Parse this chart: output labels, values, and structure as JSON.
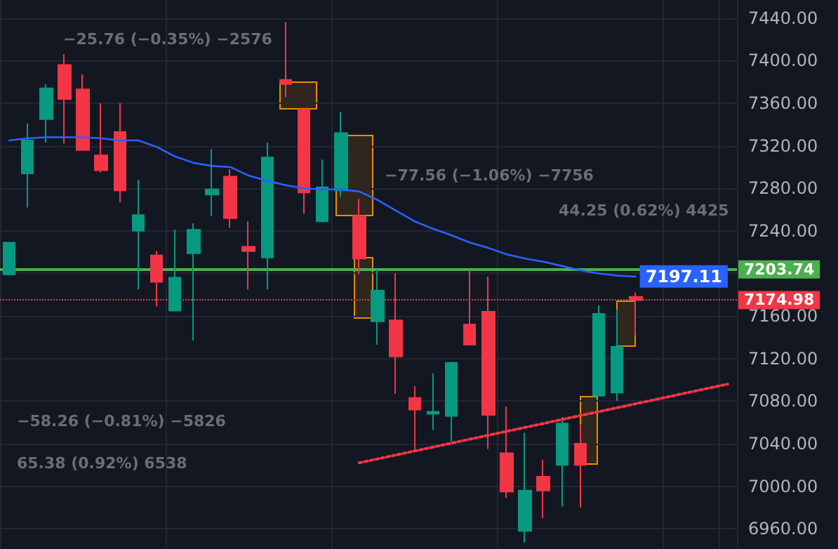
{
  "chart_data": {
    "type": "candlestick",
    "categories": [
      null,
      null,
      null,
      null,
      null,
      null,
      null,
      null,
      null,
      null,
      null,
      null,
      null,
      null,
      null,
      null,
      null,
      null,
      null,
      null,
      null,
      null,
      null,
      null,
      null,
      null,
      null,
      null,
      null,
      null,
      null,
      null,
      null,
      null,
      null,
      null,
      null,
      null,
      null,
      null
    ],
    "series": [
      {
        "type": "candlestick",
        "ohlc": [
          [
            7199,
            7229,
            7199,
            7229
          ],
          [
            7294,
            7341,
            7262,
            7325
          ],
          [
            7345,
            7378,
            7323,
            7374
          ],
          [
            7396,
            7406,
            7322,
            7364
          ],
          [
            7373,
            7387,
            7316,
            7316
          ],
          [
            7311,
            7360,
            7295,
            7297
          ],
          [
            7333,
            7360,
            7267,
            7278
          ],
          [
            7240,
            7288,
            7185,
            7255
          ],
          [
            7217,
            7221,
            7169,
            7192
          ],
          [
            7165,
            7241,
            7165,
            7196
          ],
          [
            7219,
            7247,
            7137,
            7241
          ],
          [
            7274,
            7317,
            7254,
            7279
          ],
          [
            7291,
            7298,
            7243,
            7252
          ],
          [
            7225,
            7249,
            7185,
            7221
          ],
          [
            7215,
            7323,
            7185,
            7309
          ],
          [
            7382,
            7436,
            7366,
            7378
          ],
          [
            7354,
            7354,
            7256,
            7276
          ],
          [
            7249,
            7307,
            7248,
            7281
          ],
          [
            7278,
            7352,
            7272,
            7332
          ],
          [
            7254,
            7270,
            7199,
            7214
          ],
          [
            7155,
            7204,
            7133,
            7184
          ],
          [
            7156,
            7200,
            7087,
            7122
          ],
          [
            7083,
            7094,
            7033,
            7072
          ],
          [
            7068,
            7106,
            7053,
            7070
          ],
          [
            7066,
            7117,
            7042,
            7116
          ],
          [
            7152,
            7204,
            7133,
            7133
          ],
          [
            7164,
            7197,
            7035,
            7067
          ],
          [
            7031,
            7075,
            6989,
            6995
          ],
          [
            6958,
            7050,
            6947,
            6996
          ],
          [
            7009,
            7025,
            6970,
            6996
          ],
          [
            7020,
            7065,
            6981,
            7059
          ],
          [
            7040,
            7058,
            6980,
            7020
          ],
          [
            7085,
            7170,
            7085,
            7162
          ],
          [
            7088,
            7166,
            7080,
            7131
          ],
          [
            7178,
            7182,
            7142,
            7174.98
          ],
          null,
          null,
          null,
          null,
          null
        ],
        "colors": [
          "#089981",
          "#089981",
          "#089981",
          "#f23645",
          "#f23645",
          "#f23645",
          "#f23645",
          "#089981",
          "#f23645",
          "#089981",
          "#089981",
          "#089981",
          "#f23645",
          "#f23645",
          "#089981",
          "#f23645",
          "#f23645",
          "#089981",
          "#089981",
          "#f23645",
          "#089981",
          "#f23645",
          "#f23645",
          "#089981",
          "#089981",
          "#f23645",
          "#f23645",
          "#f23645",
          "#089981",
          "#f23645",
          "#089981",
          "#f23645",
          "#089981",
          "#089981",
          "#f23645",
          null,
          null,
          null,
          null,
          null
        ]
      },
      {
        "type": "line",
        "color": "#2962ff",
        "values": [
          7325,
          7327,
          7328,
          7328,
          7328,
          7327,
          7325,
          7325,
          7319,
          7310,
          7304,
          7301,
          7300,
          7292,
          7287,
          7283,
          7280,
          7279,
          7279,
          7277,
          7269,
          7259,
          7249,
          7242,
          7236,
          7229,
          7224,
          7218,
          7214,
          7211,
          7207,
          7203,
          7200,
          7198,
          7197.11,
          null,
          null,
          null,
          null,
          null
        ],
        "value_labels": [
          null,
          null,
          null,
          null,
          null,
          null,
          null,
          null,
          null,
          null,
          null,
          null,
          null,
          null,
          null,
          null,
          null,
          null,
          null,
          null,
          null,
          null,
          null,
          null,
          null,
          null,
          null,
          null,
          null,
          null,
          null,
          null,
          null,
          null,
          "7197.11",
          null,
          null,
          null,
          null,
          null
        ]
      },
      {
        "type": "line",
        "color": "#f23645",
        "line_style": "dotted",
        "values": [
          null,
          null,
          null,
          null,
          null,
          null,
          null,
          null,
          null,
          null,
          null,
          null,
          null,
          null,
          null,
          null,
          null,
          null,
          null,
          7022,
          null,
          null,
          null,
          null,
          null,
          null,
          null,
          null,
          null,
          null,
          null,
          null,
          null,
          null,
          null,
          null,
          null,
          null,
          null,
          7096
        ]
      }
    ],
    "ylim": [
      6941,
      7457
    ],
    "yticks": [
      {
        "value": 6960,
        "label": "6960.00"
      },
      {
        "value": 7000,
        "label": "7000.00"
      },
      {
        "value": 7040,
        "label": "7040.00"
      },
      {
        "value": 7080,
        "label": "7080.00"
      },
      {
        "value": 7120,
        "label": "7120.00"
      },
      {
        "value": 7160,
        "label": "7160.00"
      },
      {
        "value": 7200,
        "label": null
      },
      {
        "value": 7240,
        "label": "7240.00"
      },
      {
        "value": 7280,
        "label": "7280.00"
      },
      {
        "value": 7320,
        "label": "7320.00"
      },
      {
        "value": 7360,
        "label": "7360.00"
      },
      {
        "value": 7400,
        "label": "7400.00"
      },
      {
        "value": 7440,
        "label": "7440.00"
      }
    ],
    "ref_lines": [
      {
        "axis": "y",
        "value": 7203.74,
        "label": "7203.74",
        "color": "#4caf50",
        "line_style": "solid"
      },
      {
        "axis": "y",
        "value": 7174.98,
        "label": "7174.98",
        "color": "#f23645",
        "line_style": "dotted"
      }
    ],
    "annotations": [
      "−25.76 (−0.35%) −2576",
      "−77.56 (−1.06%) −7756",
      "−58.26 (−0.81%) −5826",
      "65.38 (0.92%) 6538",
      "44.25 (0.62%) 4425"
    ],
    "grid": true,
    "tick_labels": "y"
  }
}
